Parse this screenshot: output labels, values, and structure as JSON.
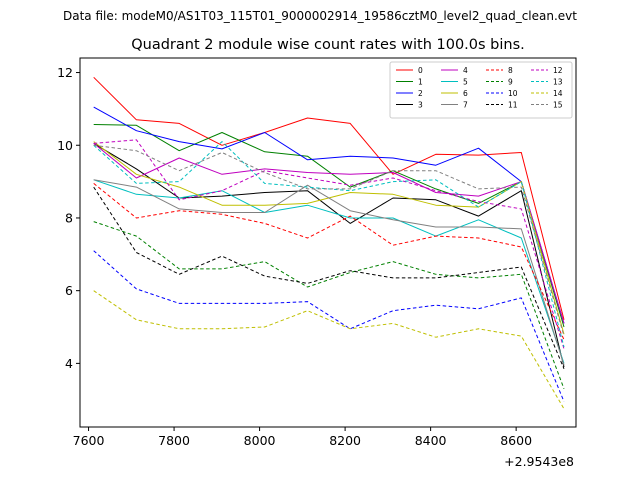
{
  "figure": {
    "suptitle": "Data file: modeM0/AS1T03_115T01_9000002914_19586cztM0_level2_quad_clean.evt"
  },
  "chart_data": {
    "type": "line",
    "title": "Quadrant 2 module wise count rates with 100.0s bins.",
    "xlabel": "",
    "ylabel": "",
    "x_offset_label": "+2.9543e8",
    "xlim": [
      7580,
      8740
    ],
    "ylim": [
      2.25,
      12.4
    ],
    "xticks": [
      7600,
      7800,
      8000,
      8200,
      8400,
      8600
    ],
    "yticks": [
      4,
      6,
      8,
      10,
      12
    ],
    "x": [
      7612,
      7712,
      7812,
      7912,
      8012,
      8112,
      8212,
      8312,
      8412,
      8512,
      8612,
      8712
    ],
    "legend_position": "upper-right",
    "series": [
      {
        "name": "0",
        "color": "#ff0000",
        "dash": "solid",
        "values": [
          11.87,
          10.7,
          10.6,
          10.0,
          10.35,
          10.75,
          10.6,
          9.2,
          9.75,
          9.73,
          9.8,
          5.2
        ]
      },
      {
        "name": "1",
        "color": "#008000",
        "dash": "solid",
        "values": [
          10.57,
          10.55,
          9.85,
          10.35,
          9.82,
          9.7,
          8.85,
          9.3,
          8.8,
          8.4,
          9.0,
          5.0
        ]
      },
      {
        "name": "2",
        "color": "#0000ff",
        "dash": "solid",
        "values": [
          11.05,
          10.4,
          10.1,
          9.9,
          10.35,
          9.6,
          9.7,
          9.65,
          9.45,
          9.92,
          9.0,
          5.1
        ]
      },
      {
        "name": "3",
        "color": "#000000",
        "dash": "solid",
        "values": [
          10.05,
          9.35,
          8.55,
          8.6,
          8.7,
          8.75,
          7.85,
          8.55,
          8.5,
          8.05,
          8.75,
          3.9
        ]
      },
      {
        "name": "4",
        "color": "#bf00bf",
        "dash": "solid",
        "values": [
          10.05,
          9.1,
          9.65,
          9.2,
          9.35,
          9.25,
          9.2,
          9.25,
          8.7,
          8.6,
          9.0,
          5.1
        ]
      },
      {
        "name": "5",
        "color": "#00bfbf",
        "dash": "solid",
        "values": [
          9.05,
          8.65,
          8.55,
          8.75,
          8.15,
          8.35,
          8.0,
          8.0,
          7.5,
          7.95,
          7.45,
          4.0
        ]
      },
      {
        "name": "6",
        "color": "#bfbf00",
        "dash": "solid",
        "values": [
          10.1,
          9.2,
          8.85,
          8.35,
          8.35,
          8.4,
          8.7,
          8.65,
          8.35,
          8.3,
          9.0,
          4.8
        ]
      },
      {
        "name": "7",
        "color": "#808080",
        "dash": "solid",
        "values": [
          9.05,
          8.85,
          8.25,
          8.15,
          8.15,
          8.9,
          8.2,
          7.95,
          7.75,
          7.75,
          7.7,
          3.95
        ]
      },
      {
        "name": "8",
        "color": "#ff0000",
        "dash": "dashed",
        "values": [
          8.95,
          8.0,
          8.2,
          8.1,
          7.85,
          7.45,
          8.05,
          7.25,
          7.5,
          7.45,
          7.2,
          4.65
        ]
      },
      {
        "name": "9",
        "color": "#008000",
        "dash": "dashed",
        "values": [
          7.9,
          7.5,
          6.6,
          6.6,
          6.8,
          6.1,
          6.5,
          6.8,
          6.45,
          6.35,
          6.45,
          3.3
        ]
      },
      {
        "name": "10",
        "color": "#0000ff",
        "dash": "dashed",
        "values": [
          7.1,
          6.05,
          5.65,
          5.65,
          5.65,
          5.7,
          4.95,
          5.45,
          5.6,
          5.5,
          5.8,
          2.95
        ]
      },
      {
        "name": "11",
        "color": "#000000",
        "dash": "dashed",
        "values": [
          8.85,
          7.05,
          6.45,
          6.95,
          6.4,
          6.2,
          6.55,
          6.35,
          6.35,
          6.5,
          6.65,
          3.85
        ]
      },
      {
        "name": "12",
        "color": "#bf00bf",
        "dash": "dashed",
        "values": [
          10.05,
          10.15,
          8.5,
          8.75,
          9.3,
          9.1,
          8.9,
          9.1,
          8.75,
          8.45,
          8.25,
          4.4
        ]
      },
      {
        "name": "13",
        "color": "#00bfbf",
        "dash": "dashed",
        "values": [
          10.0,
          8.95,
          9.0,
          10.1,
          8.95,
          8.85,
          8.75,
          9.0,
          9.05,
          8.3,
          9.0,
          4.45
        ]
      },
      {
        "name": "14",
        "color": "#bfbf00",
        "dash": "dashed",
        "values": [
          6.0,
          5.2,
          4.95,
          4.95,
          5.0,
          5.45,
          4.95,
          5.1,
          4.72,
          4.95,
          4.75,
          2.75
        ]
      },
      {
        "name": "15",
        "color": "#808080",
        "dash": "dashed",
        "values": [
          10.0,
          9.85,
          9.3,
          9.8,
          9.25,
          8.8,
          8.8,
          9.3,
          9.3,
          8.8,
          8.85,
          4.75
        ]
      }
    ]
  }
}
